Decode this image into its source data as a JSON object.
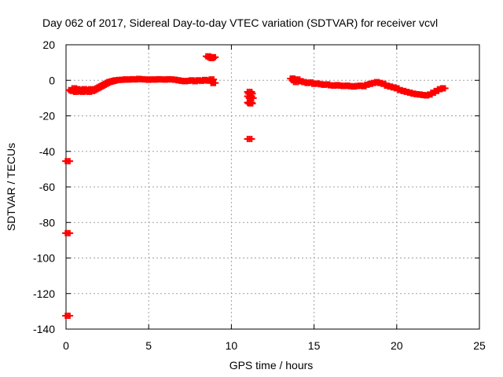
{
  "chart_data": {
    "type": "scatter",
    "title": "Day 062 of 2017, Sidereal Day-to-day VTEC variation (SDTVAR) for receiver vcvl",
    "xlabel": "GPS time / hours",
    "ylabel": "SDTVAR / TECUs",
    "xlim": [
      0,
      25
    ],
    "ylim": [
      -140,
      20
    ],
    "xticks": [
      0,
      5,
      10,
      15,
      20,
      25
    ],
    "yticks": [
      -140,
      -120,
      -100,
      -80,
      -60,
      -40,
      -20,
      0,
      20
    ],
    "grid": true,
    "legend": "none",
    "series": [
      {
        "name": "SDTVAR",
        "color": "#ff0000",
        "marker": "plus",
        "points": [
          [
            0.1,
            -45.5
          ],
          [
            0.1,
            -86
          ],
          [
            0.1,
            -132.5
          ],
          [
            0.3,
            -5.5
          ],
          [
            0.4,
            -6
          ],
          [
            0.5,
            -4.5
          ],
          [
            0.6,
            -6.5
          ],
          [
            0.7,
            -5
          ],
          [
            0.8,
            -6
          ],
          [
            0.9,
            -5.5
          ],
          [
            1.0,
            -6.5
          ],
          [
            1.1,
            -5
          ],
          [
            1.2,
            -6
          ],
          [
            1.3,
            -5.5
          ],
          [
            1.4,
            -6.5
          ],
          [
            1.5,
            -5
          ],
          [
            1.6,
            -6
          ],
          [
            1.7,
            -5.5
          ],
          [
            1.8,
            -5
          ],
          [
            1.9,
            -4.5
          ],
          [
            2.0,
            -4
          ],
          [
            2.1,
            -3.5
          ],
          [
            2.2,
            -3
          ],
          [
            2.3,
            -2.5
          ],
          [
            2.4,
            -2
          ],
          [
            2.5,
            -1.5
          ],
          [
            2.6,
            -1
          ],
          [
            2.7,
            -0.8
          ],
          [
            2.8,
            -0.5
          ],
          [
            2.9,
            -0.3
          ],
          [
            3.0,
            0
          ],
          [
            3.2,
            0.2
          ],
          [
            3.4,
            0.3
          ],
          [
            3.6,
            0.5
          ],
          [
            3.8,
            0.4
          ],
          [
            4.0,
            0.6
          ],
          [
            4.2,
            0.5
          ],
          [
            4.4,
            0.8
          ],
          [
            4.6,
            0.6
          ],
          [
            4.8,
            0.5
          ],
          [
            5.0,
            0.3
          ],
          [
            5.2,
            0.5
          ],
          [
            5.4,
            0.4
          ],
          [
            5.6,
            0.6
          ],
          [
            5.8,
            0.5
          ],
          [
            6.0,
            0.4
          ],
          [
            6.2,
            0.6
          ],
          [
            6.4,
            0.5
          ],
          [
            6.6,
            0.3
          ],
          [
            6.8,
            0
          ],
          [
            7.0,
            -0.3
          ],
          [
            7.2,
            -0.5
          ],
          [
            7.4,
            -0.3
          ],
          [
            7.6,
            0
          ],
          [
            7.8,
            -0.5
          ],
          [
            8.0,
            0
          ],
          [
            8.2,
            -0.3
          ],
          [
            8.4,
            0.2
          ],
          [
            8.6,
            -0.2
          ],
          [
            8.8,
            0.5
          ],
          [
            8.9,
            -1.5
          ],
          [
            8.6,
            13.5
          ],
          [
            8.7,
            13
          ],
          [
            8.8,
            12.5
          ],
          [
            8.9,
            13
          ],
          [
            11.1,
            -6.5
          ],
          [
            11.15,
            -7.5
          ],
          [
            11.1,
            -9
          ],
          [
            11.2,
            -10
          ],
          [
            11.1,
            -12.5
          ],
          [
            11.15,
            -13
          ],
          [
            11.1,
            -33
          ],
          [
            13.7,
            1
          ],
          [
            13.8,
            0
          ],
          [
            13.9,
            -1
          ],
          [
            14.0,
            0.5
          ],
          [
            14.2,
            -0.5
          ],
          [
            14.4,
            -1
          ],
          [
            14.6,
            -1.5
          ],
          [
            14.8,
            -1.2
          ],
          [
            15.0,
            -2
          ],
          [
            15.2,
            -1.8
          ],
          [
            15.4,
            -2.2
          ],
          [
            15.6,
            -2.5
          ],
          [
            15.8,
            -2.3
          ],
          [
            16.0,
            -2.8
          ],
          [
            16.2,
            -3
          ],
          [
            16.4,
            -2.7
          ],
          [
            16.6,
            -3
          ],
          [
            16.8,
            -3.2
          ],
          [
            17.0,
            -3
          ],
          [
            17.2,
            -3.3
          ],
          [
            17.4,
            -3.5
          ],
          [
            17.6,
            -3.2
          ],
          [
            17.8,
            -3
          ],
          [
            18.0,
            -3.3
          ],
          [
            18.2,
            -2.5
          ],
          [
            18.4,
            -2
          ],
          [
            18.6,
            -1.5
          ],
          [
            18.8,
            -1
          ],
          [
            19.0,
            -1.5
          ],
          [
            19.2,
            -2
          ],
          [
            19.4,
            -3
          ],
          [
            19.6,
            -3.5
          ],
          [
            19.8,
            -4
          ],
          [
            20.0,
            -4.5
          ],
          [
            20.2,
            -5.5
          ],
          [
            20.4,
            -6
          ],
          [
            20.6,
            -6.5
          ],
          [
            20.8,
            -7
          ],
          [
            21.0,
            -7.5
          ],
          [
            21.2,
            -7.8
          ],
          [
            21.4,
            -8
          ],
          [
            21.6,
            -8.3
          ],
          [
            21.8,
            -8.5
          ],
          [
            22.0,
            -8
          ],
          [
            22.2,
            -7
          ],
          [
            22.4,
            -6
          ],
          [
            22.6,
            -5
          ],
          [
            22.8,
            -4.5
          ]
        ]
      }
    ]
  }
}
